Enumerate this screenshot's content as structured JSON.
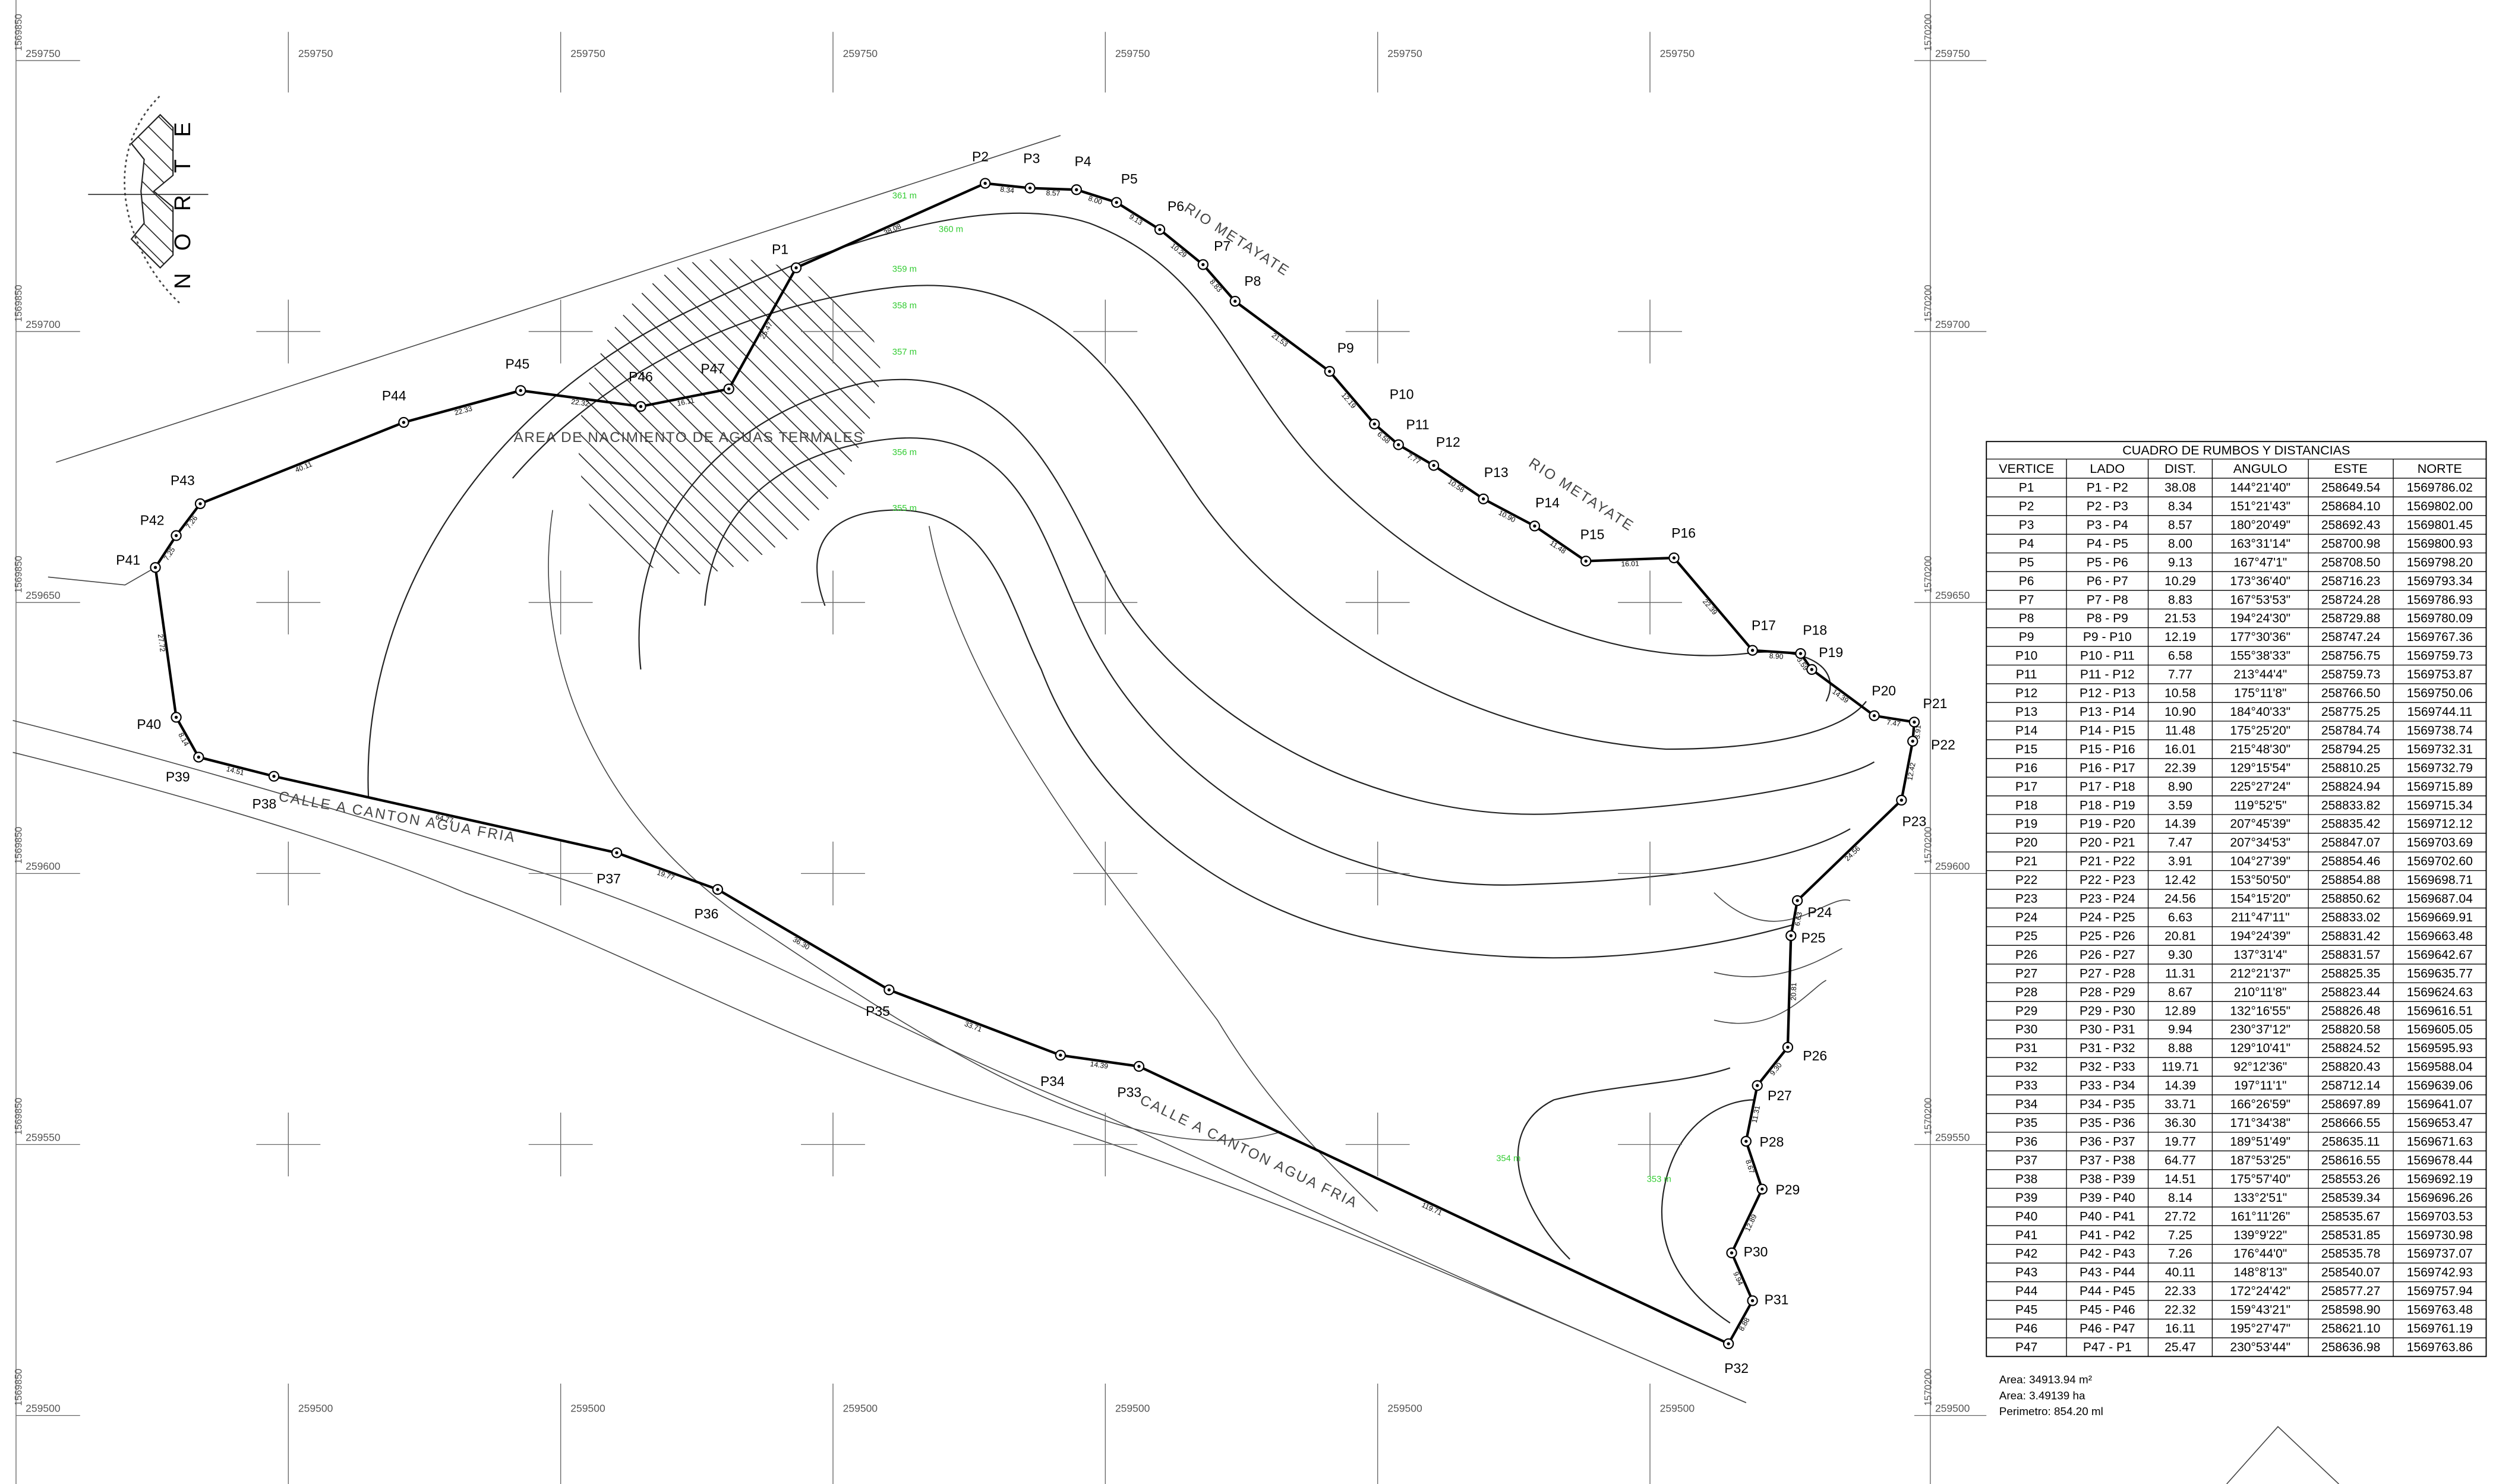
{
  "drawing": {
    "compass": "NORTE",
    "river_labels": [
      "RIO METAYATE",
      "RIO METAYATE"
    ],
    "road_labels": [
      "CALLE A CANTON AGUA FRIA",
      "CALLE A CANTON AGUA FRIA"
    ],
    "area_label": "AREA DE NACIMIENTO DE AGUAS TERMALES",
    "contours": [
      "361 m",
      "360 m",
      "359 m",
      "358 m",
      "357 m",
      "356 m",
      "355 m",
      "354 m",
      "353 m"
    ],
    "grid_labels": [
      "259750",
      "259700",
      "259650",
      "259600",
      "259550",
      "259500"
    ],
    "left_northing": "1569850",
    "right_northing": "1570200"
  },
  "summary": [
    "Area:  34913.94  m²",
    "Area:  3.49139  ha",
    "Perimetro:  854.20  ml"
  ],
  "table": {
    "title": "CUADRO DE RUMBOS Y DISTANCIAS",
    "columns": [
      "VERTICE",
      "LADO",
      "DIST.",
      "ANGULO",
      "ESTE",
      "NORTE"
    ],
    "rows": [
      [
        "P1",
        "P1 - P2",
        "38.08",
        "144°21'40\"",
        "258649.54",
        "1569786.02"
      ],
      [
        "P2",
        "P2 - P3",
        "8.34",
        "151°21'43\"",
        "258684.10",
        "1569802.00"
      ],
      [
        "P3",
        "P3 - P4",
        "8.57",
        "180°20'49\"",
        "258692.43",
        "1569801.45"
      ],
      [
        "P4",
        "P4 - P5",
        "8.00",
        "163°31'14\"",
        "258700.98",
        "1569800.93"
      ],
      [
        "P5",
        "P5 - P6",
        "9.13",
        "167°47'1\"",
        "258708.50",
        "1569798.20"
      ],
      [
        "P6",
        "P6 - P7",
        "10.29",
        "173°36'40\"",
        "258716.23",
        "1569793.34"
      ],
      [
        "P7",
        "P7 - P8",
        "8.83",
        "167°53'53\"",
        "258724.28",
        "1569786.93"
      ],
      [
        "P8",
        "P8 - P9",
        "21.53",
        "194°24'30\"",
        "258729.88",
        "1569780.09"
      ],
      [
        "P9",
        "P9 - P10",
        "12.19",
        "177°30'36\"",
        "258747.24",
        "1569767.36"
      ],
      [
        "P10",
        "P10 - P11",
        "6.58",
        "155°38'33\"",
        "258756.75",
        "1569759.73"
      ],
      [
        "P11",
        "P11 - P12",
        "7.77",
        "213°44'4\"",
        "258759.73",
        "1569753.87"
      ],
      [
        "P12",
        "P12 - P13",
        "10.58",
        "175°11'8\"",
        "258766.50",
        "1569750.06"
      ],
      [
        "P13",
        "P13 - P14",
        "10.90",
        "184°40'33\"",
        "258775.25",
        "1569744.11"
      ],
      [
        "P14",
        "P14 - P15",
        "11.48",
        "175°25'20\"",
        "258784.74",
        "1569738.74"
      ],
      [
        "P15",
        "P15 - P16",
        "16.01",
        "215°48'30\"",
        "258794.25",
        "1569732.31"
      ],
      [
        "P16",
        "P16 - P17",
        "22.39",
        "129°15'54\"",
        "258810.25",
        "1569732.79"
      ],
      [
        "P17",
        "P17 - P18",
        "8.90",
        "225°27'24\"",
        "258824.94",
        "1569715.89"
      ],
      [
        "P18",
        "P18 - P19",
        "3.59",
        "119°52'5\"",
        "258833.82",
        "1569715.34"
      ],
      [
        "P19",
        "P19 - P20",
        "14.39",
        "207°45'39\"",
        "258835.42",
        "1569712.12"
      ],
      [
        "P20",
        "P20 - P21",
        "7.47",
        "207°34'53\"",
        "258847.07",
        "1569703.69"
      ],
      [
        "P21",
        "P21 - P22",
        "3.91",
        "104°27'39\"",
        "258854.46",
        "1569702.60"
      ],
      [
        "P22",
        "P22 - P23",
        "12.42",
        "153°50'50\"",
        "258854.88",
        "1569698.71"
      ],
      [
        "P23",
        "P23 - P24",
        "24.56",
        "154°15'20\"",
        "258850.62",
        "1569687.04"
      ],
      [
        "P24",
        "P24 - P25",
        "6.63",
        "211°47'11\"",
        "258833.02",
        "1569669.91"
      ],
      [
        "P25",
        "P25 - P26",
        "20.81",
        "194°24'39\"",
        "258831.42",
        "1569663.48"
      ],
      [
        "P26",
        "P26 - P27",
        "9.30",
        "137°31'4\"",
        "258831.57",
        "1569642.67"
      ],
      [
        "P27",
        "P27 - P28",
        "11.31",
        "212°21'37\"",
        "258825.35",
        "1569635.77"
      ],
      [
        "P28",
        "P28 - P29",
        "8.67",
        "210°11'8\"",
        "258823.44",
        "1569624.63"
      ],
      [
        "P29",
        "P29 - P30",
        "12.89",
        "132°16'55\"",
        "258826.48",
        "1569616.51"
      ],
      [
        "P30",
        "P30 - P31",
        "9.94",
        "230°37'12\"",
        "258820.58",
        "1569605.05"
      ],
      [
        "P31",
        "P31 - P32",
        "8.88",
        "129°10'41\"",
        "258824.52",
        "1569595.93"
      ],
      [
        "P32",
        "P32 - P33",
        "119.71",
        "92°12'36\"",
        "258820.43",
        "1569588.04"
      ],
      [
        "P33",
        "P33 - P34",
        "14.39",
        "197°11'1\"",
        "258712.14",
        "1569639.06"
      ],
      [
        "P34",
        "P34 - P35",
        "33.71",
        "166°26'59\"",
        "258697.89",
        "1569641.07"
      ],
      [
        "P35",
        "P35 - P36",
        "36.30",
        "171°34'38\"",
        "258666.55",
        "1569653.47"
      ],
      [
        "P36",
        "P36 - P37",
        "19.77",
        "189°51'49\"",
        "258635.11",
        "1569671.63"
      ],
      [
        "P37",
        "P37 - P38",
        "64.77",
        "187°53'25\"",
        "258616.55",
        "1569678.44"
      ],
      [
        "P38",
        "P38 - P39",
        "14.51",
        "175°57'40\"",
        "258553.26",
        "1569692.19"
      ],
      [
        "P39",
        "P39 - P40",
        "8.14",
        "133°2'51\"",
        "258539.34",
        "1569696.26"
      ],
      [
        "P40",
        "P40 - P41",
        "27.72",
        "161°11'26\"",
        "258535.67",
        "1569703.53"
      ],
      [
        "P41",
        "P41 - P42",
        "7.25",
        "139°9'22\"",
        "258531.85",
        "1569730.98"
      ],
      [
        "P42",
        "P42 - P43",
        "7.26",
        "176°44'0\"",
        "258535.78",
        "1569737.07"
      ],
      [
        "P43",
        "P43 - P44",
        "40.11",
        "148°8'13\"",
        "258540.07",
        "1569742.93"
      ],
      [
        "P44",
        "P44 - P45",
        "22.33",
        "172°24'42\"",
        "258577.27",
        "1569757.94"
      ],
      [
        "P45",
        "P45 - P46",
        "22.32",
        "159°43'21\"",
        "258598.90",
        "1569763.48"
      ],
      [
        "P46",
        "P46 - P47",
        "16.11",
        "195°27'47\"",
        "258621.10",
        "1569761.19"
      ],
      [
        "P47",
        "P47 - P1",
        "25.47",
        "230°53'44\"",
        "258636.98",
        "1569763.86"
      ]
    ]
  }
}
